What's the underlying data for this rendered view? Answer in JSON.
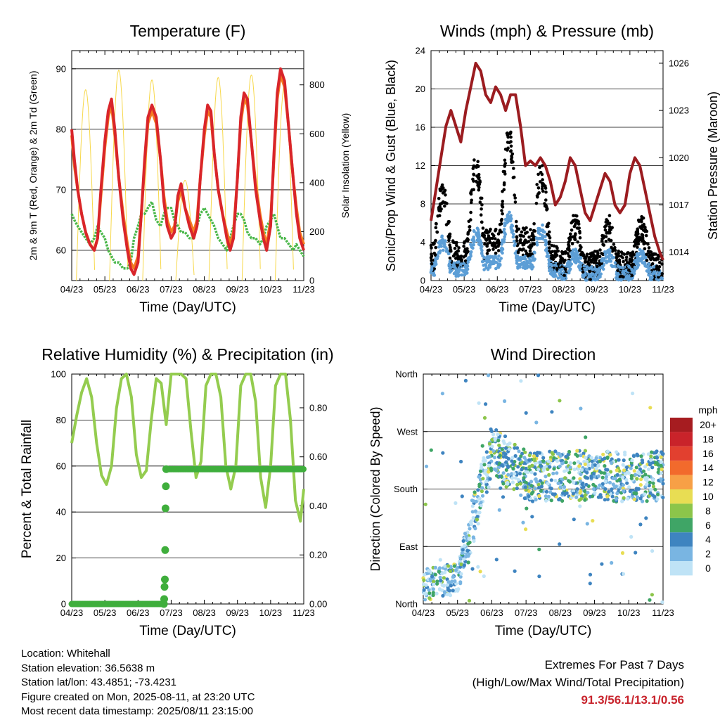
{
  "colors": {
    "temp2m": "#d9252a",
    "temp9m": "#f47b20",
    "dewpoint": "#4ab74a",
    "solar": "#f7d84a",
    "gust": "#000000",
    "wind": "#5c9ed6",
    "pressure": "#9b1c20",
    "rh": "#94cc4f",
    "precip": "#3fae3c",
    "extremes": "#c8232c"
  },
  "x_ticks": [
    "04/23",
    "05/23",
    "06/23",
    "07/23",
    "08/23",
    "09/23",
    "10/23",
    "11/23"
  ],
  "chart_data": [
    {
      "type": "line",
      "title": "Temperature (F)",
      "xlabel": "Time (Day/UTC)",
      "ylabel": "2m & 9m T (Red, Orange) & 2m Td (Green)",
      "y2label": "Solar Insolation (Yellow)",
      "x": [
        0,
        0.08,
        0.18,
        0.3,
        0.42,
        0.55,
        0.68,
        0.78,
        0.88,
        1.0,
        1.1,
        1.2,
        1.3,
        1.42,
        1.55,
        1.68,
        1.78,
        1.88,
        2.0,
        2.1,
        2.2,
        2.3,
        2.42,
        2.55,
        2.68,
        2.78,
        2.88,
        3.0,
        3.1,
        3.2,
        3.3,
        3.42,
        3.55,
        3.68,
        3.78,
        3.88,
        4.0,
        4.1,
        4.2,
        4.3,
        4.42,
        4.55,
        4.68,
        4.78,
        4.88,
        5.0,
        5.1,
        5.2,
        5.3,
        5.42,
        5.55,
        5.68,
        5.78,
        5.88,
        6.0,
        6.1,
        6.2,
        6.3,
        6.42,
        6.55,
        6.68,
        6.78,
        6.88,
        7.0
      ],
      "ylim": [
        55,
        93
      ],
      "y2lim": [
        0,
        940
      ],
      "yticks": [
        60,
        70,
        80,
        90
      ],
      "y2ticks": [
        0,
        200,
        400,
        600,
        800
      ],
      "series": [
        {
          "values": [
            80,
            75,
            70,
            66,
            63,
            61,
            60,
            62,
            70,
            78,
            83,
            85,
            80,
            72,
            65,
            60,
            57,
            56,
            58,
            66,
            75,
            82,
            84,
            82,
            75,
            68,
            64,
            62,
            63,
            69,
            71,
            67,
            64,
            62,
            64,
            72,
            80,
            84,
            83,
            76,
            70,
            66,
            62,
            60,
            62,
            72,
            82,
            86,
            85,
            78,
            70,
            65,
            62,
            60,
            64,
            76,
            86,
            90,
            88,
            80,
            72,
            66,
            62,
            60
          ]
        },
        {
          "values": [
            79,
            74,
            70,
            66,
            63,
            61,
            60,
            62,
            69,
            77,
            82,
            84,
            79,
            72,
            66,
            61,
            58,
            57,
            59,
            66,
            74,
            81,
            83,
            81,
            75,
            69,
            65,
            63,
            64,
            68,
            70,
            67,
            65,
            63,
            65,
            72,
            79,
            83,
            82,
            76,
            70,
            66,
            63,
            61,
            63,
            72,
            81,
            85,
            84,
            78,
            71,
            66,
            63,
            61,
            65,
            75,
            85,
            89,
            87,
            80,
            72,
            67,
            63,
            61
          ]
        },
        {
          "values": [
            66,
            65,
            64,
            63,
            62,
            61,
            62,
            64,
            63,
            62,
            60,
            59,
            58,
            58,
            57,
            57,
            58,
            62,
            64,
            66,
            66,
            67,
            68,
            65,
            64,
            66,
            67,
            67,
            65,
            64,
            63,
            63,
            62,
            62,
            64,
            66,
            67,
            66,
            65,
            64,
            62,
            61,
            60,
            62,
            64,
            66,
            66,
            65,
            63,
            62,
            62,
            61,
            62,
            64,
            65,
            66,
            64,
            62,
            62,
            61,
            60,
            61,
            60,
            59
          ]
        }
      ],
      "solar_peaks": [
        0.42,
        1.42,
        2.42,
        3.42,
        4.42,
        5.42,
        6.42
      ],
      "solar_max": [
        780,
        860,
        820,
        410,
        830,
        840,
        800
      ]
    },
    {
      "type": "scatter",
      "title": "Winds (mph) & Pressure (mb)",
      "xlabel": "Time (Day/UTC)",
      "ylabel": "Sonic/Prop Wind & Gust (Blue, Black)",
      "y2label": "Station Pressure (Maroon)",
      "ylim": [
        0,
        24
      ],
      "yticks": [
        0,
        4,
        8,
        12,
        16,
        20,
        24
      ],
      "y2lim": [
        1012.2,
        1026.8
      ],
      "y2ticks": [
        1014,
        1017,
        1020,
        1023,
        1026
      ],
      "pressure_x": [
        0,
        0.15,
        0.3,
        0.45,
        0.6,
        0.75,
        0.9,
        1.05,
        1.2,
        1.35,
        1.5,
        1.65,
        1.8,
        1.95,
        2.1,
        2.25,
        2.4,
        2.55,
        2.7,
        2.85,
        3.0,
        3.15,
        3.3,
        3.45,
        3.6,
        3.75,
        3.9,
        4.05,
        4.2,
        4.35,
        4.5,
        4.65,
        4.8,
        4.95,
        5.1,
        5.25,
        5.4,
        5.55,
        5.7,
        5.85,
        6.0,
        6.15,
        6.3,
        6.45,
        6.6,
        6.75,
        6.9,
        7.0
      ],
      "pressure": [
        1016,
        1018,
        1020,
        1022,
        1023,
        1022,
        1021,
        1023,
        1024.5,
        1026,
        1025.5,
        1024,
        1023.5,
        1024.5,
        1024,
        1023,
        1024,
        1024,
        1022,
        1019.5,
        1019.8,
        1019.5,
        1020,
        1019.5,
        1018.5,
        1017,
        1017.5,
        1018.5,
        1020,
        1019.5,
        1018,
        1016.5,
        1016,
        1017,
        1018,
        1019,
        1018.5,
        1017,
        1016.5,
        1017,
        1019,
        1020,
        1019.5,
        1018,
        1016.5,
        1015,
        1014,
        1013.5
      ],
      "gust_daily_mean": [
        6,
        7,
        11,
        10,
        4,
        4,
        4,
        4
      ],
      "wind_daily_mean": [
        3,
        3,
        5,
        5,
        2,
        2,
        2,
        2
      ]
    },
    {
      "type": "line",
      "title": "Relative Humidity (%) & Precipitation (in)",
      "xlabel": "Time (Day/UTC)",
      "ylabel": "Percent & Total Rainfall",
      "ylim": [
        0,
        100
      ],
      "yticks": [
        0,
        20,
        40,
        60,
        80,
        100
      ],
      "y2lim": [
        0,
        0.9375
      ],
      "y2ticks": [
        "0.00",
        "0.20",
        "0.40",
        "0.60",
        "0.80"
      ],
      "rh_x": [
        0,
        0.15,
        0.3,
        0.45,
        0.6,
        0.75,
        0.9,
        1.05,
        1.2,
        1.35,
        1.5,
        1.65,
        1.8,
        1.95,
        2.1,
        2.25,
        2.4,
        2.55,
        2.7,
        2.85,
        3.0,
        3.15,
        3.3,
        3.45,
        3.6,
        3.75,
        3.9,
        4.05,
        4.2,
        4.35,
        4.5,
        4.65,
        4.8,
        4.95,
        5.1,
        5.25,
        5.4,
        5.55,
        5.7,
        5.85,
        6.0,
        6.15,
        6.3,
        6.45,
        6.6,
        6.75,
        6.9,
        7.0
      ],
      "rh": [
        70,
        82,
        92,
        98,
        90,
        70,
        56,
        52,
        60,
        85,
        98,
        100,
        90,
        65,
        55,
        58,
        80,
        98,
        96,
        78,
        100,
        100,
        100,
        98,
        75,
        55,
        62,
        95,
        100,
        100,
        90,
        60,
        50,
        60,
        95,
        100,
        100,
        88,
        55,
        42,
        60,
        95,
        100,
        100,
        80,
        45,
        36,
        50
      ],
      "precip_x": [
        0,
        2.78,
        2.79,
        2.8,
        2.81,
        2.82,
        2.83,
        2.84,
        2.85,
        7.0
      ],
      "precip": [
        0,
        0,
        0.02,
        0.07,
        0.1,
        0.22,
        0.39,
        0.48,
        0.55,
        0.55
      ]
    },
    {
      "type": "scatter",
      "title": "Wind Direction",
      "xlabel": "Time (Day/UTC)",
      "ylabel": "Direction (Colored By Speed)",
      "ylim": [
        0,
        360
      ],
      "ytick_labels": [
        "North",
        "East",
        "South",
        "West",
        "North"
      ],
      "daily_mean_direction": [
        30,
        40,
        240,
        200,
        200,
        200,
        200,
        200
      ],
      "legend": {
        "title": "mph",
        "labels": [
          "20+",
          "18",
          "16",
          "14",
          "12",
          "10",
          "8",
          "6",
          "4",
          "2",
          "0"
        ],
        "colors": [
          "#a61c20",
          "#c9232a",
          "#e2402f",
          "#f26a2c",
          "#f7a046",
          "#e8dd53",
          "#8cc54a",
          "#3fa566",
          "#3e84c0",
          "#79b5e2",
          "#bfe3f6"
        ]
      }
    }
  ],
  "info": {
    "location": "Location: Whitehall",
    "elevation": "Station elevation: 36.5638 m",
    "latlon": "Station lat/lon: 43.4851; -73.4231",
    "created": "Figure created on Mon, 2025-08-11, at 23:20 UTC",
    "timestamp": "Most recent data timestamp: 2025/08/11 23:15:00"
  },
  "extremes": {
    "title": "Extremes For Past 7 Days",
    "subtitle": "(High/Low/Max Wind/Total Precipitation)",
    "values": "91.3/56.1/13.1/0.56"
  }
}
